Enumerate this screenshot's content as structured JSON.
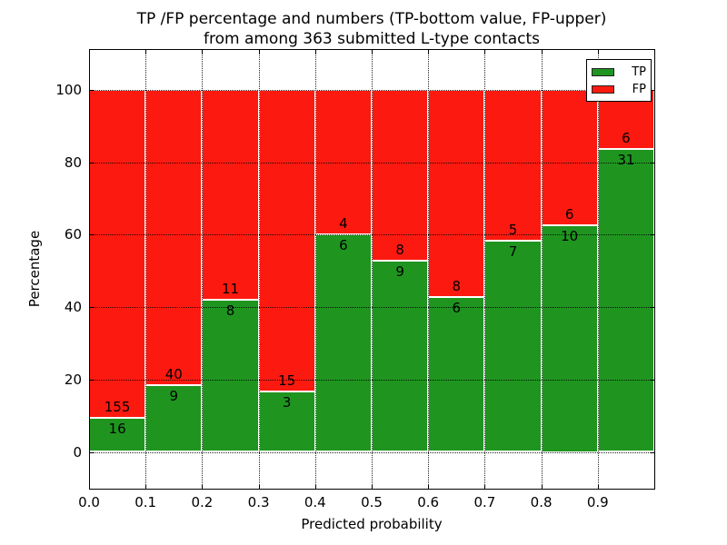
{
  "figure": {
    "title_line1": "TP /FP percentage and numbers (TP-bottom value, FP-upper)",
    "title_line2": "from among 363 submitted L-type contacts",
    "background_color": "#ffffff",
    "text_color": "#000000"
  },
  "chart_data": {
    "type": "bar",
    "stacked": true,
    "units": "percent of bin total",
    "title": "TP /FP percentage and numbers (TP-bottom value, FP-upper)\nfrom among 363 submitted L-type contacts",
    "xlabel": "Predicted probability",
    "ylabel": "Percentage",
    "xlim": [
      0.0,
      1.0
    ],
    "ylim": [
      -10,
      111
    ],
    "grid": true,
    "grid_style": "dotted",
    "bin_width": 0.1,
    "bin_starts": [
      0.0,
      0.1,
      0.2,
      0.3,
      0.4,
      0.5,
      0.6,
      0.7,
      0.8,
      0.9
    ],
    "x_ticks": [
      0.0,
      0.1,
      0.2,
      0.3,
      0.4,
      0.5,
      0.6,
      0.7,
      0.8,
      0.9
    ],
    "x_ticklabels": [
      "0.0",
      "0.1",
      "0.2",
      "0.3",
      "0.4",
      "0.5",
      "0.6",
      "0.7",
      "0.8",
      "0.9"
    ],
    "y_ticks": [
      0,
      20,
      40,
      60,
      80,
      100
    ],
    "y_ticklabels": [
      "0",
      "20",
      "40",
      "60",
      "80",
      "100"
    ],
    "total_contacts": 363,
    "series": [
      {
        "name": "TP",
        "color": "#1f9520",
        "counts": [
          16,
          9,
          8,
          3,
          6,
          9,
          6,
          7,
          10,
          31
        ]
      },
      {
        "name": "FP",
        "color": "#fc1a10",
        "counts": [
          155,
          40,
          11,
          15,
          4,
          8,
          8,
          5,
          6,
          6
        ]
      }
    ],
    "tp_percent_per_bin": [
      9.36,
      18.37,
      42.11,
      16.67,
      60.0,
      52.94,
      42.86,
      58.33,
      62.5,
      83.78
    ],
    "bar_edge_color": "#ffffff",
    "legend": {
      "position": "upper right",
      "entries": [
        "TP",
        "FP"
      ]
    }
  }
}
